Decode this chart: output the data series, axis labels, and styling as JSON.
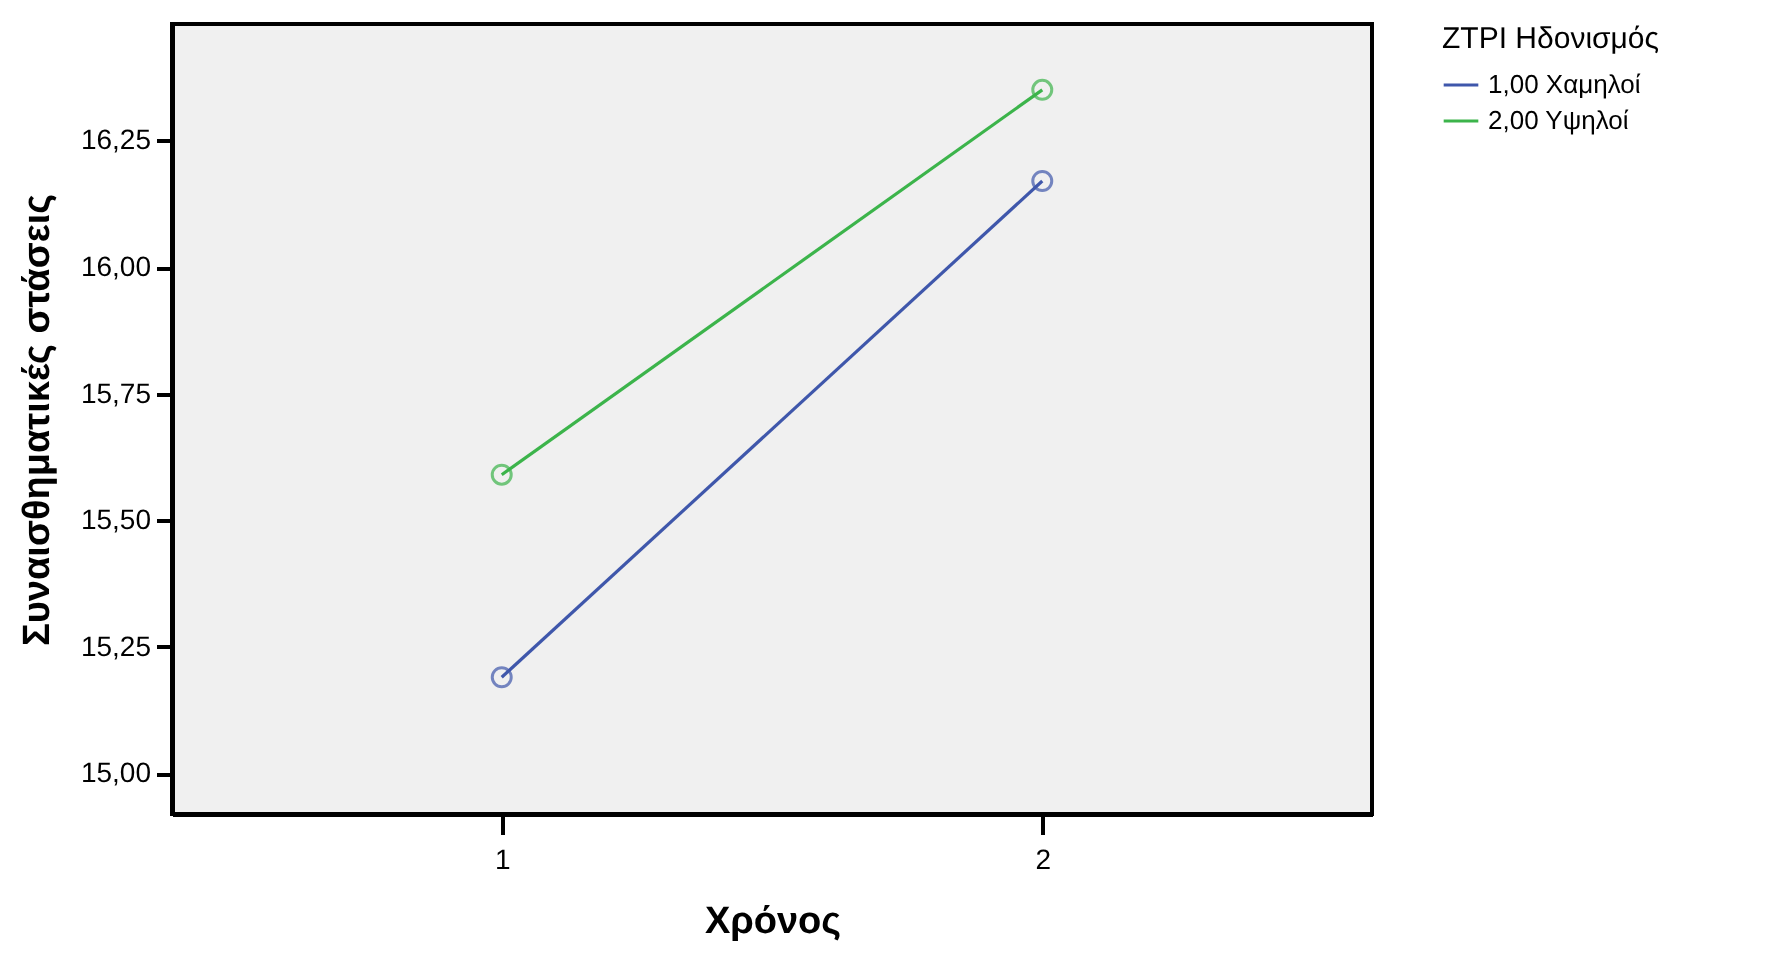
{
  "chart_data": {
    "type": "line",
    "xlabel": "Χρόνος",
    "ylabel": "Συναισθηματικές στάσεις",
    "legend_title": "ZTPI Ηδονισμός",
    "x": [
      1,
      2
    ],
    "series": [
      {
        "name": "1,00 Χαμηλοί",
        "color": "#3f57ab",
        "values": [
          15.19,
          16.17
        ]
      },
      {
        "name": "2,00 Υψηλοί",
        "color": "#3cb44b",
        "values": [
          15.59,
          16.35
        ]
      }
    ],
    "xlim": [
      0.39,
      2.61
    ],
    "xticks": [
      1,
      2
    ],
    "ylim": [
      14.92,
      16.48
    ],
    "yticks": [
      {
        "value": 15,
        "label": "15,00"
      },
      {
        "value": 15.25,
        "label": "15,25"
      },
      {
        "value": 15.5,
        "label": "15,50"
      },
      {
        "value": 15.75,
        "label": "15,75"
      },
      {
        "value": 16,
        "label": "16,00"
      },
      {
        "value": 16.25,
        "label": "16,25"
      }
    ],
    "grid": false,
    "legend": "top right",
    "marker": "circle",
    "line_style": "solid"
  }
}
